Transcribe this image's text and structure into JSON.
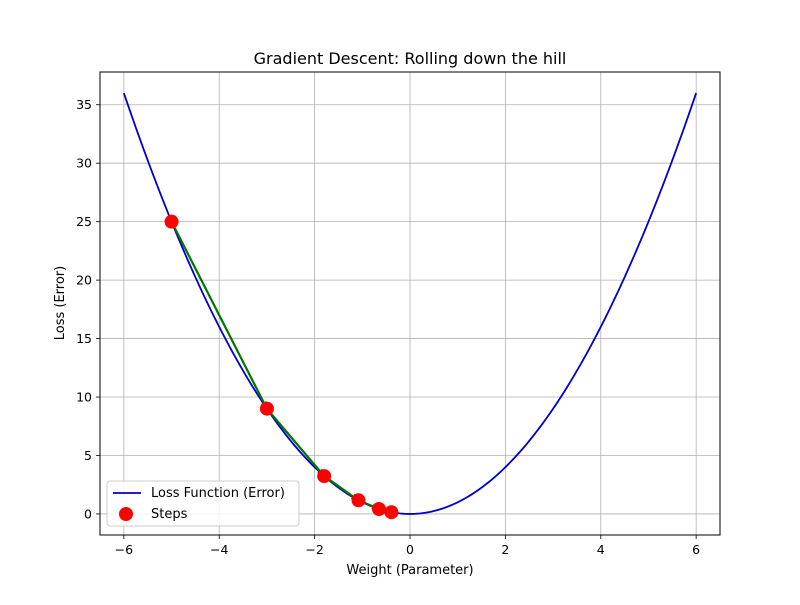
{
  "chart_data": {
    "type": "line",
    "title": "Gradient Descent: Rolling down the hill",
    "xlabel": "Weight (Parameter)",
    "ylabel": "Loss (Error)",
    "xlim": [
      -6.5,
      6.5
    ],
    "ylim": [
      -1.8,
      37.8
    ],
    "x_ticks": [
      -6,
      -4,
      -2,
      0,
      2,
      4,
      6
    ],
    "x_tick_labels": [
      "−6",
      "−4",
      "−2",
      "0",
      "2",
      "4",
      "6"
    ],
    "y_ticks": [
      0,
      5,
      10,
      15,
      20,
      25,
      30,
      35
    ],
    "y_tick_labels": [
      "0",
      "5",
      "10",
      "15",
      "20",
      "25",
      "30",
      "35"
    ],
    "grid": true,
    "legend_position": "lower-left",
    "series": [
      {
        "name": "Loss Function (Error)",
        "kind": "line",
        "function": "x^2",
        "x_range": [
          -6,
          6
        ],
        "color": "#0000cc"
      },
      {
        "name": "Steps",
        "kind": "scatter",
        "color": "#ff0000",
        "points": [
          {
            "x": -5.0,
            "y": 25.0
          },
          {
            "x": -3.0,
            "y": 9.0
          },
          {
            "x": -1.8,
            "y": 3.24
          },
          {
            "x": -1.08,
            "y": 1.17
          },
          {
            "x": -0.65,
            "y": 0.42
          },
          {
            "x": -0.39,
            "y": 0.15
          }
        ]
      }
    ],
    "arrows": {
      "color": "#007700",
      "description": "green arrows connecting consecutive steps"
    }
  }
}
